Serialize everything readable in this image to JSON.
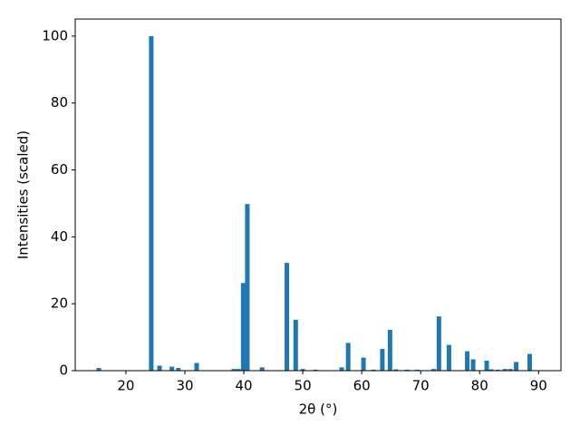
{
  "chart_data": {
    "type": "bar",
    "xlabel": "2θ (°)",
    "ylabel": "Intensities (scaled)",
    "color": "#1f77b4",
    "x": [
      15.4,
      24.3,
      25.7,
      27.8,
      28.9,
      32.0,
      38.3,
      39.1,
      39.9,
      40.6,
      43.1,
      47.3,
      48.8,
      50.0,
      52.2,
      56.6,
      57.7,
      60.3,
      62.0,
      63.5,
      64.8,
      65.8,
      67.7,
      69.4,
      72.2,
      73.1,
      74.8,
      77.9,
      78.9,
      81.2,
      82.0,
      83.1,
      84.3,
      85.2,
      86.2,
      88.5
    ],
    "values": [
      0.8,
      100,
      1.5,
      1.2,
      0.8,
      2.3,
      0.5,
      0.5,
      26.2,
      49.8,
      1.0,
      32.2,
      15.2,
      0.5,
      0.3,
      1.0,
      8.3,
      3.9,
      0.3,
      6.5,
      12.2,
      0.4,
      0.3,
      0.3,
      0.5,
      16.2,
      7.7,
      5.8,
      3.4,
      3.0,
      0.4,
      0.3,
      0.5,
      0.5,
      2.6,
      5.0
    ],
    "xlim": [
      11.4,
      93.8
    ],
    "xticks": [
      20,
      30,
      40,
      50,
      60,
      70,
      80,
      90
    ],
    "ylim": [
      0,
      105.1
    ],
    "yticks": [
      0,
      20,
      40,
      60,
      80,
      100
    ]
  }
}
